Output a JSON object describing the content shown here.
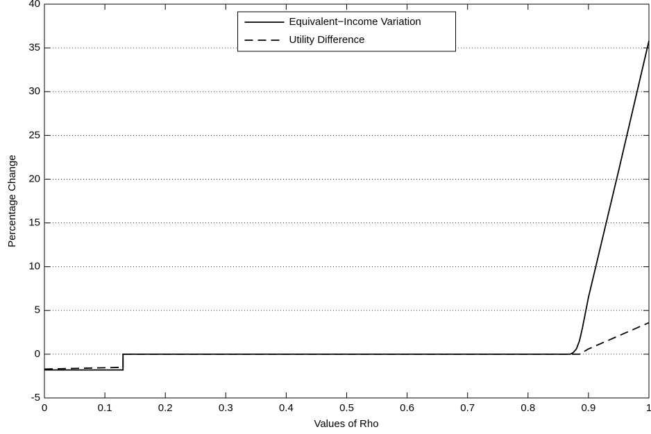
{
  "chart_data": {
    "type": "line",
    "xlabel": "Values of Rho",
    "ylabel": "Percentage Change",
    "x": [
      0,
      0.13,
      0.13,
      0.87,
      0.875,
      0.88,
      0.885,
      0.89,
      0.9,
      0.95,
      1
    ],
    "series": [
      {
        "name": "Equivalent−Income Variation",
        "color": "#000000",
        "dash": "solid",
        "values": [
          -1.8,
          -1.8,
          0,
          0,
          0.2,
          0.6,
          1.5,
          3,
          6.5,
          21,
          35.8
        ]
      },
      {
        "name": "Utility Difference",
        "color": "#000000",
        "dash": "dashed",
        "values": [
          -1.7,
          -1.5,
          0,
          0,
          0,
          0,
          0,
          0.2,
          0.6,
          2.1,
          3.6
        ]
      }
    ],
    "xlim": [
      0,
      1
    ],
    "xticks": [
      0,
      0.1,
      0.2,
      0.3,
      0.4,
      0.5,
      0.6,
      0.7,
      0.8,
      0.9,
      1
    ],
    "ylim": [
      -5,
      40
    ],
    "yticks": [
      -5,
      0,
      5,
      10,
      15,
      20,
      25,
      30,
      35,
      40
    ],
    "grid": "y",
    "legend": "north"
  }
}
